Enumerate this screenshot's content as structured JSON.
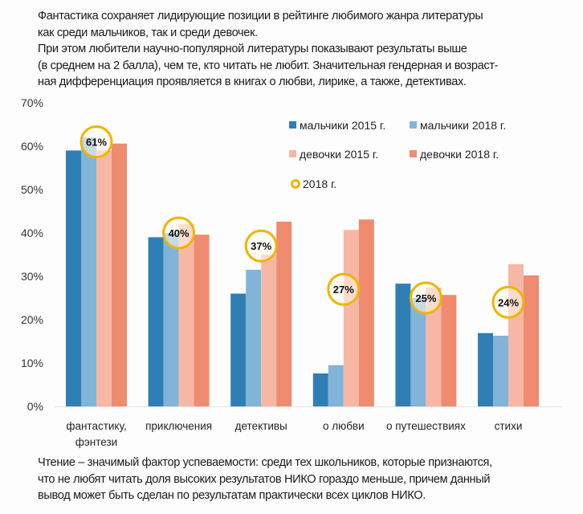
{
  "intro_text": {
    "lines": [
      "Фантастика сохраняет лидирующие позиции в рейтинге любимого жанра литературы",
      "как среди мальчиков, так и среди девочек.",
      "При этом любители научно-популярной литературы показывают результаты выше",
      "(в среднем на 2 балла), чем те, кто читать не любит. Значительная гендерная и возраст-",
      "ная дифференциация проявляется в книгах о любви, лирике, а также, детективах."
    ]
  },
  "outro_text": {
    "lines": [
      "Чтение – значимый фактор успеваемости: среди тех школьников, которые признаются,",
      "что не любят читать доля высоких результатов НИКО гораздо меньше, причем данный",
      "вывод может быть сделан по результатам практически всех циклов НИКО."
    ]
  },
  "chart_data": {
    "type": "bar",
    "title": "",
    "xlabel": "",
    "ylabel": "",
    "ylim": [
      0,
      70
    ],
    "yticks": [
      "0%",
      "10%",
      "20%",
      "30%",
      "40%",
      "50%",
      "60%",
      "70%"
    ],
    "grid": false,
    "legend_position": "top-right",
    "categories": [
      [
        "фантастику,",
        "фэнтези"
      ],
      [
        "приключения"
      ],
      [
        "детективы"
      ],
      [
        "о любви"
      ],
      [
        "о путешествиях"
      ],
      [
        "стихи"
      ]
    ],
    "series": [
      {
        "name": "мальчики 2015 г.",
        "color": "#2f7fb5",
        "values": [
          59,
          39,
          26,
          7.6,
          28.3,
          16.9
        ]
      },
      {
        "name": "мальчики 2018 г.",
        "color": "#82b4d8",
        "values": [
          62,
          40,
          31.5,
          9.5,
          25,
          16.3
        ]
      },
      {
        "name": "девочки 2015 г.",
        "color": "#f6b8a5",
        "values": [
          59,
          42,
          35,
          40.7,
          27.4,
          32.8
        ]
      },
      {
        "name": "девочки 2018 г.",
        "color": "#ef8b6f",
        "values": [
          60.6,
          39.6,
          42.6,
          43.1,
          25.7,
          30.2
        ]
      }
    ],
    "annotations": {
      "legend_label": "2018 г.",
      "color": "#f0b400",
      "values": [
        61,
        40,
        37,
        27,
        25,
        24
      ],
      "labels": [
        "61%",
        "40%",
        "37%",
        "27%",
        "25%",
        "24%"
      ]
    }
  }
}
